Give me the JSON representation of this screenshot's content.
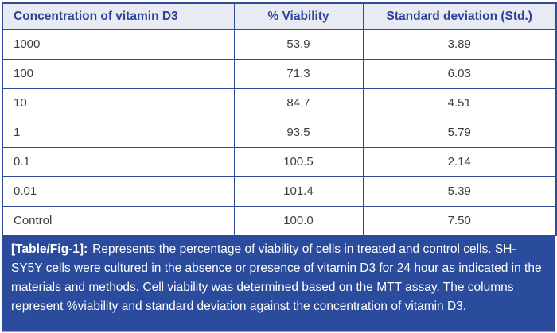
{
  "table": {
    "columns": [
      "Concentration of vitamin D3",
      "% Viability",
      "Standard deviation (Std.)"
    ],
    "rows": [
      {
        "concentration": "1000",
        "viability": "53.9",
        "std": "3.89"
      },
      {
        "concentration": "100",
        "viability": "71.3",
        "std": "6.03"
      },
      {
        "concentration": "10",
        "viability": "84.7",
        "std": "4.51"
      },
      {
        "concentration": "1",
        "viability": "93.5",
        "std": "5.79"
      },
      {
        "concentration": "0.1",
        "viability": "100.5",
        "std": "2.14"
      },
      {
        "concentration": "0.01",
        "viability": "101.4",
        "std": "5.39"
      },
      {
        "concentration": "Control",
        "viability": "100.0",
        "std": "7.50"
      }
    ]
  },
  "caption": {
    "label": "[Table/Fig-1]:",
    "text": "Represents the percentage of viability of cells in treated and control cells. SH-SY5Y cells were cultured in the absence or presence of vitamin D3 for 24 hour as indicated in the materials and methods. Cell viability was determined based on the MTT assay. The columns represent %viability and standard deviation against the concentration of vitamin D3."
  },
  "colors": {
    "header_background": "#e8eaf4",
    "header_text": "#2d4396",
    "grid_border": "#2e4c97",
    "body_text": "#3d3d3d",
    "caption_background": "#2b4b9c",
    "caption_text": "#ffffff"
  },
  "chart_data": {
    "type": "table",
    "title": "[Table/Fig-1] % viability and standard deviation against concentration of vitamin D3",
    "columns": [
      "Concentration of vitamin D3",
      "% Viability",
      "Standard deviation (Std.)"
    ],
    "rows": [
      [
        "1000",
        53.9,
        3.89
      ],
      [
        "100",
        71.3,
        6.03
      ],
      [
        "10",
        84.7,
        4.51
      ],
      [
        "1",
        93.5,
        5.79
      ],
      [
        "0.1",
        100.5,
        2.14
      ],
      [
        "0.01",
        101.4,
        5.39
      ],
      [
        "Control",
        100.0,
        7.5
      ]
    ]
  }
}
